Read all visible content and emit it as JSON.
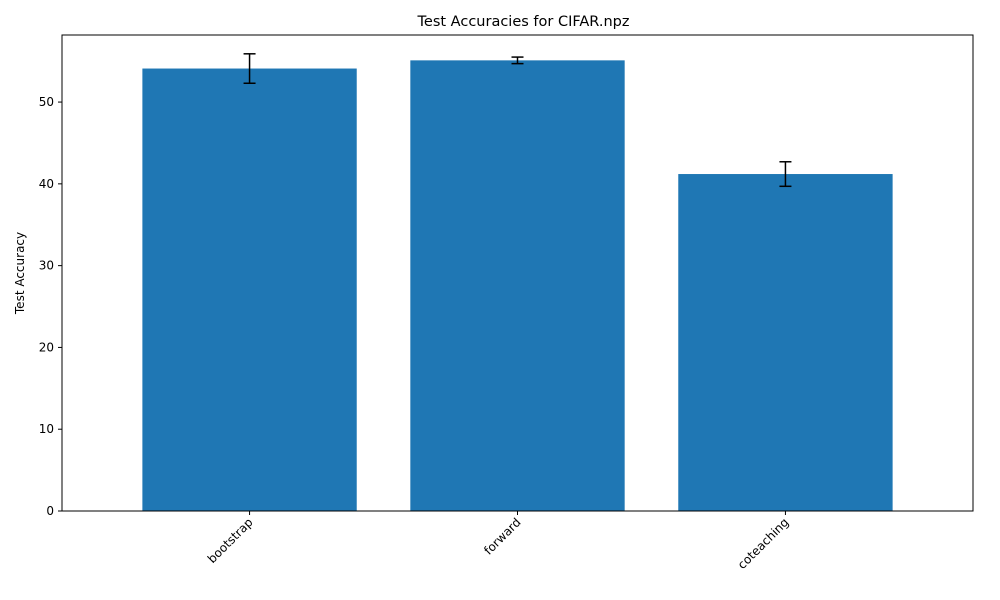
{
  "chart_data": {
    "type": "bar",
    "title": "Test Accuracies for CIFAR.npz",
    "xlabel": "",
    "ylabel": "Test Accuracy",
    "categories": [
      "bootstrap",
      "forward",
      "coteaching"
    ],
    "values": [
      54.1,
      55.1,
      41.2
    ],
    "errors": [
      1.8,
      0.4,
      1.5
    ],
    "ylim": [
      0,
      58.2
    ],
    "yticks": [
      0,
      10,
      20,
      30,
      40,
      50
    ],
    "ytick_labels": [
      "0",
      "10",
      "20",
      "30",
      "40",
      "50"
    ],
    "grid": false,
    "legend": "none",
    "bar_color": "#1f77b4",
    "error_color": "#000000"
  }
}
